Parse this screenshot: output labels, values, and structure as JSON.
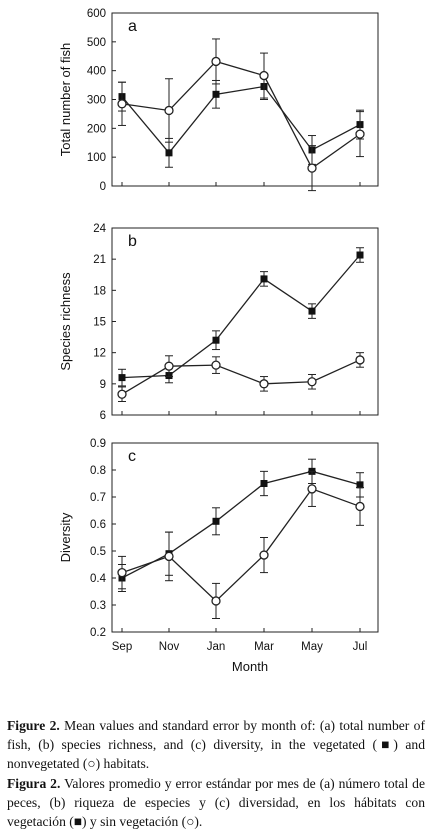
{
  "chart_data": [
    {
      "type": "line",
      "panel_label": "a",
      "ylabel": "Total number of fish",
      "categories": [
        "Sep",
        "Nov",
        "Jan",
        "Mar",
        "May",
        "Jul"
      ],
      "ylim": [
        0,
        600
      ],
      "yticks": [
        0,
        100,
        200,
        300,
        400,
        500,
        600
      ],
      "series": [
        {
          "marker": "filled-square",
          "values": [
            310,
            115,
            318,
            345,
            125,
            213
          ],
          "err": [
            50,
            50,
            48,
            45,
            50,
            50
          ]
        },
        {
          "marker": "open-circle",
          "values": [
            285,
            262,
            432,
            383,
            62,
            180
          ],
          "err": [
            75,
            110,
            78,
            78,
            78,
            78
          ]
        }
      ]
    },
    {
      "type": "line",
      "panel_label": "b",
      "ylabel": "Species richness",
      "categories": [
        "Sep",
        "Nov",
        "Jan",
        "Mar",
        "May",
        "Jul"
      ],
      "ylim": [
        6,
        24
      ],
      "yticks": [
        6,
        9,
        12,
        15,
        18,
        21,
        24
      ],
      "series": [
        {
          "marker": "filled-square",
          "values": [
            9.6,
            9.8,
            13.2,
            19.1,
            16.0,
            21.4
          ],
          "err": [
            0.8,
            0.7,
            0.9,
            0.7,
            0.7,
            0.7
          ]
        },
        {
          "marker": "open-circle",
          "values": [
            8.0,
            10.7,
            10.8,
            9.0,
            9.2,
            11.3
          ],
          "err": [
            0.7,
            1.0,
            0.8,
            0.7,
            0.7,
            0.7
          ]
        }
      ]
    },
    {
      "type": "line",
      "panel_label": "c",
      "ylabel": "Diversity",
      "xlabel": "Month",
      "categories": [
        "Sep",
        "Nov",
        "Jan",
        "Mar",
        "May",
        "Jul"
      ],
      "ylim": [
        0.2,
        0.9
      ],
      "yticks": [
        "0.2",
        "0.3",
        "0.4",
        "0.5",
        "0.6",
        "0.7",
        "0.8",
        "0.9"
      ],
      "series": [
        {
          "marker": "filled-square",
          "values": [
            0.4,
            0.49,
            0.61,
            0.75,
            0.795,
            0.745
          ],
          "err": [
            0.05,
            0.08,
            0.05,
            0.045,
            0.045,
            0.045
          ]
        },
        {
          "marker": "open-circle",
          "values": [
            0.42,
            0.48,
            0.315,
            0.485,
            0.73,
            0.665
          ],
          "err": [
            0.06,
            0.09,
            0.065,
            0.065,
            0.065,
            0.07
          ]
        }
      ]
    }
  ],
  "caption_en": {
    "label": "Figure 2.",
    "text": " Mean values and standard error by month of: (a) total number of fish, (b) species richness, and (c) diversity, in the vegetated (■) and nonvegetated (○) habitats."
  },
  "caption_es": {
    "label": "Figura 2.",
    "text": " Valores  promedio y error estándar por mes de (a) número total de peces, (b) riqueza de especies y (c) diversidad, en los hábitats con vegetación (■) y sin vegetación (○)."
  }
}
